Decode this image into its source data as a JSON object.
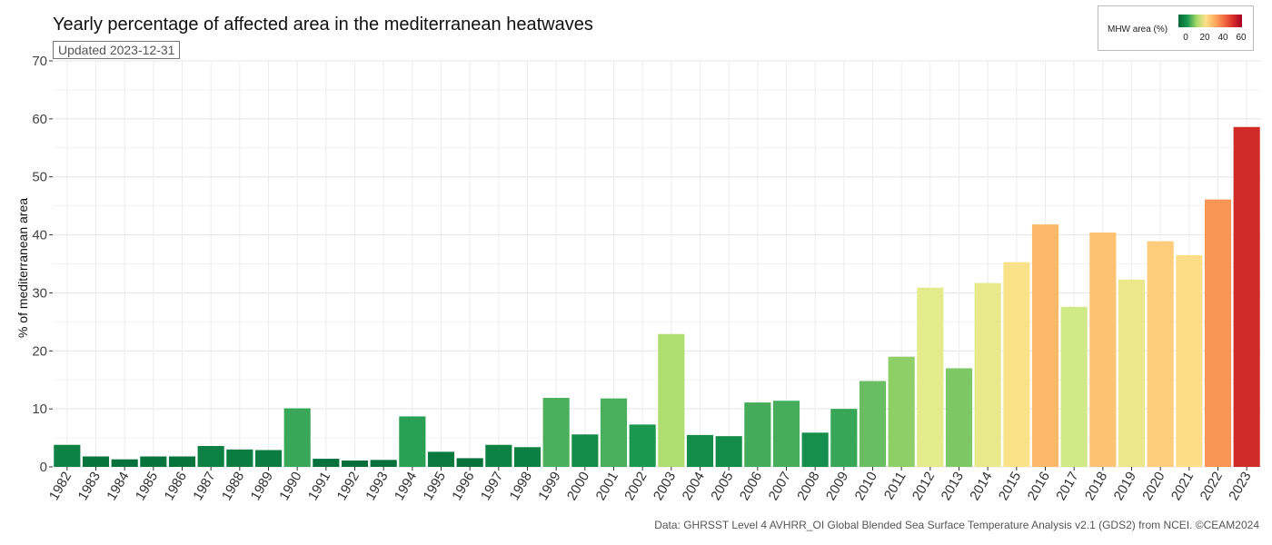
{
  "header": {
    "title": "Yearly percentage of affected area in the mediterranean heatwaves",
    "updated": "Updated 2023-12-31"
  },
  "legend": {
    "title": "MHW area (%)",
    "ticks": [
      "0",
      "20",
      "40",
      "60"
    ],
    "tick_values": [
      0,
      20,
      40,
      60
    ],
    "range": [
      0,
      65
    ],
    "palette": [
      "#006837",
      "#1a9850",
      "#66bd63",
      "#a6d96a",
      "#d9ef8b",
      "#fee08b",
      "#fdae61",
      "#f46d43",
      "#d73027",
      "#a50026"
    ]
  },
  "footer": {
    "source": "Data: GHRSST Level 4 AVHRR_OI Global Blended Sea Surface Temperature Analysis v2.1 (GDS2) from NCEI. ©CEAM2024"
  },
  "chart_data": {
    "type": "bar",
    "title": "Yearly percentage of affected area in the mediterranean heatwaves",
    "xlabel": "",
    "ylabel": "% of mediterranean area",
    "ylim": [
      0,
      70
    ],
    "yticks": [
      0,
      10,
      20,
      30,
      40,
      50,
      60,
      70
    ],
    "grid": true,
    "legend_position": "top-right",
    "categories": [
      "1982",
      "1983",
      "1984",
      "1985",
      "1986",
      "1987",
      "1988",
      "1989",
      "1990",
      "1991",
      "1992",
      "1993",
      "1994",
      "1995",
      "1996",
      "1997",
      "1998",
      "1999",
      "2000",
      "2001",
      "2002",
      "2003",
      "2004",
      "2005",
      "2006",
      "2007",
      "2008",
      "2009",
      "2010",
      "2011",
      "2012",
      "2013",
      "2014",
      "2015",
      "2016",
      "2017",
      "2018",
      "2019",
      "2020",
      "2021",
      "2022",
      "2023"
    ],
    "values": [
      3.8,
      1.8,
      1.3,
      1.8,
      1.8,
      3.6,
      3.0,
      2.9,
      10.1,
      1.4,
      1.1,
      1.2,
      8.7,
      2.6,
      1.5,
      3.8,
      3.4,
      11.9,
      5.6,
      11.8,
      7.3,
      22.9,
      5.5,
      5.3,
      11.1,
      11.4,
      5.9,
      10.0,
      14.8,
      19.0,
      30.9,
      17.0,
      31.7,
      35.3,
      41.8,
      27.6,
      40.4,
      32.3,
      38.9,
      36.5,
      46.1,
      58.6
    ]
  }
}
